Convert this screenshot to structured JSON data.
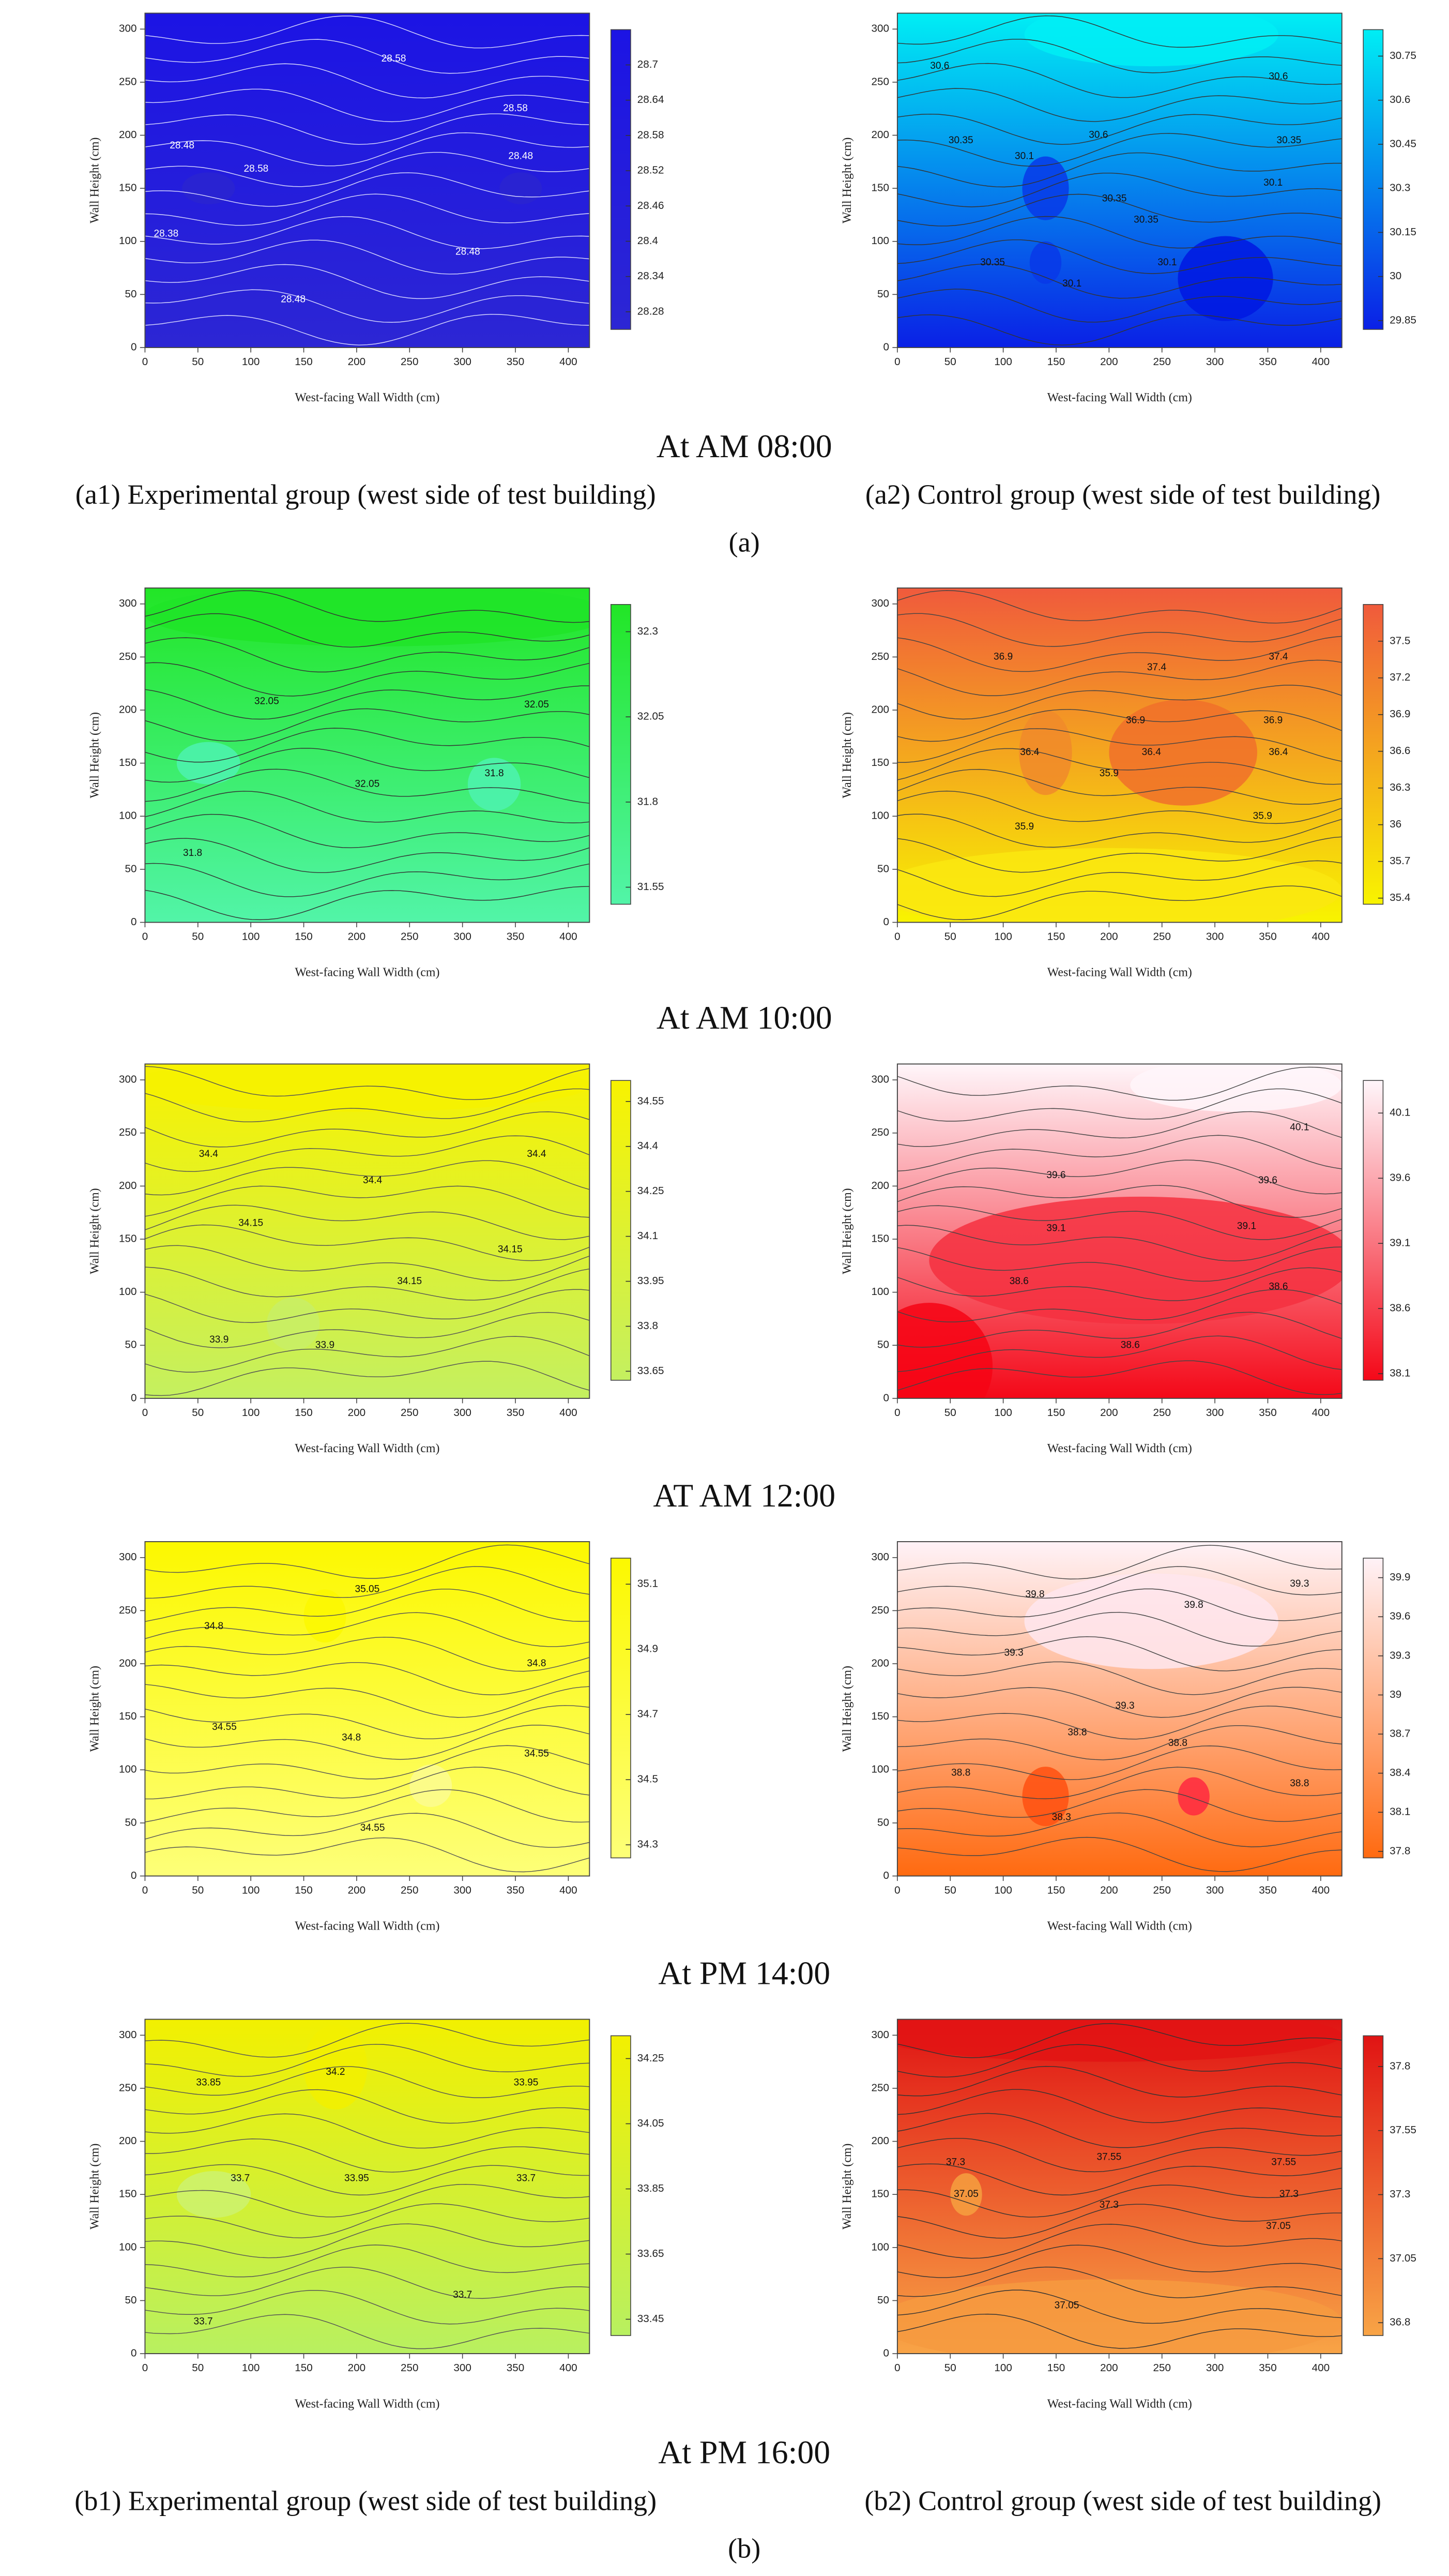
{
  "chart_data": [
    {
      "type": "contour",
      "xlabel": "West-facing Wall Width (cm)",
      "ylabel": "Wall Height (cm)",
      "xlim": [
        0,
        420
      ],
      "ylim": [
        0,
        315
      ],
      "xticks": [
        0,
        50,
        100,
        150,
        200,
        250,
        300,
        350,
        400
      ],
      "yticks": [
        0,
        50,
        100,
        150,
        200,
        250,
        300
      ],
      "clim": [
        28.25,
        28.76
      ],
      "colorbar_ticks": [
        28.7,
        28.64,
        28.58,
        28.52,
        28.46,
        28.4,
        28.34,
        28.28
      ],
      "colors": [
        "#2c26d4",
        "#1c14e4"
      ],
      "contour_labels": [
        28.58,
        28.58,
        28.48,
        28.58,
        28.48,
        28.38,
        28.48,
        28.48
      ]
    },
    {
      "type": "contour",
      "xlabel": "West-facing Wall Width (cm)",
      "ylabel": "Wall Height (cm)",
      "xlim": [
        0,
        420
      ],
      "ylim": [
        0,
        315
      ],
      "xticks": [
        0,
        50,
        100,
        150,
        200,
        250,
        300,
        350,
        400
      ],
      "yticks": [
        0,
        50,
        100,
        150,
        200,
        250,
        300
      ],
      "clim": [
        29.82,
        30.84
      ],
      "colorbar_ticks": [
        30.75,
        30.6,
        30.45,
        30.3,
        30.15,
        30,
        29.85
      ],
      "colors": [
        "#0a20e6",
        "#00eef4"
      ],
      "contour_labels": [
        30.6,
        30.6,
        30.35,
        30.35,
        30.1,
        30.6,
        30.35,
        30.35,
        30.1,
        30.35,
        30.1,
        30.1
      ]
    },
    {
      "type": "contour",
      "xlabel": "West-facing Wall Width (cm)",
      "ylabel": "Wall Height (cm)",
      "xlim": [
        0,
        420
      ],
      "ylim": [
        0,
        315
      ],
      "xticks": [
        0,
        50,
        100,
        150,
        200,
        250,
        300,
        350,
        400
      ],
      "yticks": [
        0,
        50,
        100,
        150,
        200,
        250,
        300
      ],
      "clim": [
        31.5,
        32.38
      ],
      "colorbar_ticks": [
        32.3,
        32.05,
        31.8,
        31.55
      ],
      "colors": [
        "#52f4a8",
        "#22e626"
      ],
      "contour_labels": [
        32.05,
        32.05,
        32.05,
        31.8,
        31.8
      ]
    },
    {
      "type": "contour",
      "xlabel": "West-facing Wall Width (cm)",
      "ylabel": "Wall Height (cm)",
      "xlim": [
        0,
        420
      ],
      "ylim": [
        0,
        315
      ],
      "xticks": [
        0,
        50,
        100,
        150,
        200,
        250,
        300,
        350,
        400
      ],
      "yticks": [
        0,
        50,
        100,
        150,
        200,
        250,
        300
      ],
      "clim": [
        35.35,
        37.8
      ],
      "colorbar_ticks": [
        37.5,
        37.2,
        36.9,
        36.6,
        36.3,
        36,
        35.7,
        35.4
      ],
      "colors": [
        "#f8f400",
        "#f05a3c"
      ],
      "contour_labels": [
        36.9,
        37.4,
        37.4,
        36.9,
        36.9,
        36.4,
        36.4,
        36.4,
        35.9,
        35.9,
        35.9
      ]
    },
    {
      "type": "contour",
      "xlabel": "West-facing Wall Width (cm)",
      "ylabel": "Wall Height (cm)",
      "xlim": [
        0,
        420
      ],
      "ylim": [
        0,
        315
      ],
      "xticks": [
        0,
        50,
        100,
        150,
        200,
        250,
        300,
        350,
        400
      ],
      "yticks": [
        0,
        50,
        100,
        150,
        200,
        250,
        300
      ],
      "clim": [
        33.62,
        34.62
      ],
      "colorbar_ticks": [
        34.55,
        34.4,
        34.25,
        34.1,
        33.95,
        33.8,
        33.65
      ],
      "colors": [
        "#c4f060",
        "#f8f200"
      ],
      "contour_labels": [
        34.4,
        34.4,
        34.4,
        34.15,
        34.15,
        34.15,
        33.9,
        33.9
      ]
    },
    {
      "type": "contour",
      "xlabel": "West-facing Wall Width (cm)",
      "ylabel": "Wall Height (cm)",
      "xlim": [
        0,
        420
      ],
      "ylim": [
        0,
        315
      ],
      "xticks": [
        0,
        50,
        100,
        150,
        200,
        250,
        300,
        350,
        400
      ],
      "yticks": [
        0,
        50,
        100,
        150,
        200,
        250,
        300
      ],
      "clim": [
        38.05,
        40.35
      ],
      "colorbar_ticks": [
        40.1,
        39.6,
        39.1,
        38.6,
        38.1
      ],
      "colors": [
        "#f40818",
        "#fff6fa"
      ],
      "contour_labels": [
        40.1,
        39.6,
        39.6,
        39.1,
        39.1,
        38.6,
        38.6,
        38.6
      ]
    },
    {
      "type": "contour",
      "xlabel": "West-facing Wall Width (cm)",
      "ylabel": "Wall Height (cm)",
      "xlim": [
        0,
        420
      ],
      "ylim": [
        0,
        315
      ],
      "xticks": [
        0,
        50,
        100,
        150,
        200,
        250,
        300,
        350,
        400
      ],
      "yticks": [
        0,
        50,
        100,
        150,
        200,
        250,
        300
      ],
      "clim": [
        34.26,
        35.18
      ],
      "colorbar_ticks": [
        35.1,
        34.9,
        34.7,
        34.5,
        34.3
      ],
      "colors": [
        "#fdff78",
        "#fcf800"
      ],
      "contour_labels": [
        35.05,
        34.8,
        34.8,
        34.55,
        34.8,
        34.55,
        34.55
      ]
    },
    {
      "type": "contour",
      "xlabel": "West-facing Wall Width (cm)",
      "ylabel": "Wall Height (cm)",
      "xlim": [
        0,
        420
      ],
      "ylim": [
        0,
        315
      ],
      "xticks": [
        0,
        50,
        100,
        150,
        200,
        250,
        300,
        350,
        400
      ],
      "yticks": [
        0,
        50,
        100,
        150,
        200,
        250,
        300
      ],
      "clim": [
        37.75,
        40.05
      ],
      "colorbar_ticks": [
        39.9,
        39.6,
        39.3,
        39,
        38.7,
        38.4,
        38.1,
        37.8
      ],
      "colors": [
        "#ff6a10",
        "#fff2f7"
      ],
      "contour_labels": [
        39.8,
        39.8,
        39.3,
        39.3,
        39.3,
        38.8,
        38.8,
        38.8,
        38.8,
        38.3
      ]
    },
    {
      "type": "contour",
      "xlabel": "West-facing Wall Width (cm)",
      "ylabel": "Wall Height (cm)",
      "xlim": [
        0,
        420
      ],
      "ylim": [
        0,
        315
      ],
      "xticks": [
        0,
        50,
        100,
        150,
        200,
        250,
        300,
        350,
        400
      ],
      "yticks": [
        0,
        50,
        100,
        150,
        200,
        250,
        300
      ],
      "clim": [
        33.4,
        34.32
      ],
      "colorbar_ticks": [
        34.25,
        34.05,
        33.85,
        33.65,
        33.45
      ],
      "colors": [
        "#b8f060",
        "#f2f000"
      ],
      "contour_labels": [
        34.2,
        33.85,
        33.95,
        33.7,
        33.95,
        33.7,
        33.7,
        33.7
      ]
    },
    {
      "type": "contour",
      "xlabel": "West-facing Wall Width (cm)",
      "ylabel": "Wall Height (cm)",
      "xlim": [
        0,
        420
      ],
      "ylim": [
        0,
        315
      ],
      "xticks": [
        0,
        50,
        100,
        150,
        200,
        250,
        300,
        350,
        400
      ],
      "yticks": [
        0,
        50,
        100,
        150,
        200,
        250,
        300
      ],
      "clim": [
        36.75,
        37.92
      ],
      "colorbar_ticks": [
        37.8,
        37.55,
        37.3,
        37.05,
        36.8
      ],
      "colors": [
        "#f8a446",
        "#e01414"
      ],
      "contour_labels": [
        37.55,
        37.55,
        37.3,
        37.3,
        37.3,
        37.05,
        37.05,
        37.05
      ]
    }
  ],
  "figure": {
    "row_titles": [
      "At AM 08:00",
      "At AM 10:00",
      "AT AM 12:00",
      "At PM 14:00",
      "At PM 16:00"
    ],
    "top_captions": [
      "(a1) Experimental group (west side of test building)",
      "(a2) Control group (west side of test building)"
    ],
    "top_label": "(a)",
    "bottom_captions": [
      "(b1) Experimental group (west side of test building)",
      "(b2) Control group (west side of test building)"
    ],
    "bottom_label": "(b)"
  }
}
